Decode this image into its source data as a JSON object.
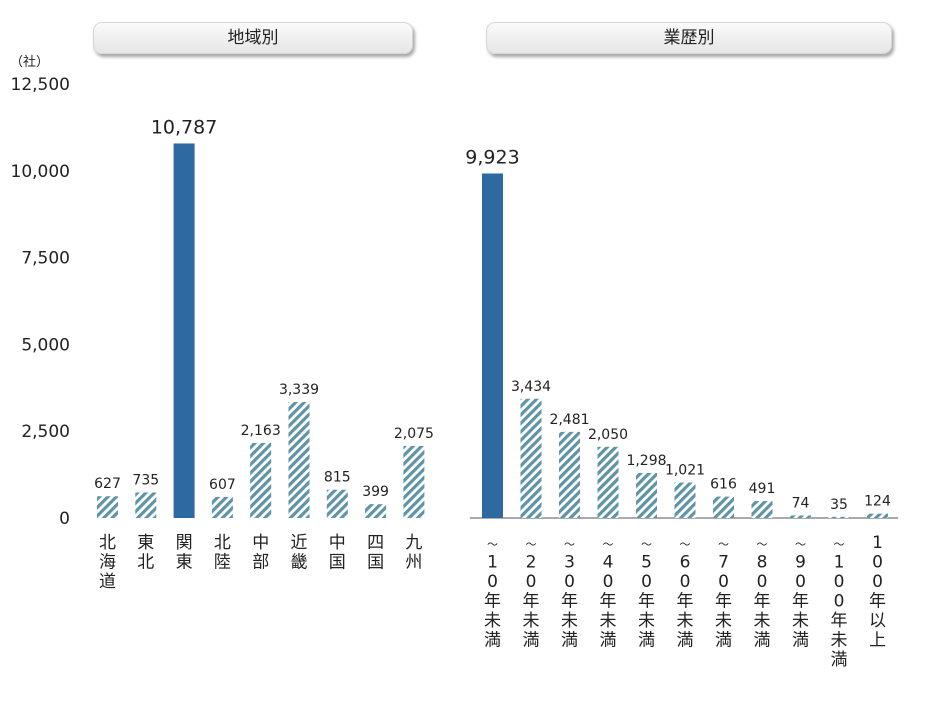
{
  "chart_data": {
    "type": "bar",
    "unit": "（社）",
    "ylim": [
      0,
      12500
    ],
    "yticks": [
      "0",
      "2,500",
      "5,000",
      "7,500",
      "10,000",
      "12,500"
    ],
    "colors": {
      "highlight": "#2e6aa1",
      "hatch": "#5f93a6"
    },
    "groups": [
      {
        "title": "地域別",
        "categories": [
          "北海道",
          "東北",
          "関東",
          "北陸",
          "中部",
          "近畿",
          "中国",
          "四国",
          "九州"
        ],
        "values": [
          627,
          735,
          10787,
          607,
          2163,
          3339,
          815,
          399,
          2075
        ],
        "labels": [
          "627",
          "735",
          "10,787",
          "607",
          "2,163",
          "3,339",
          "815",
          "399",
          "2,075"
        ],
        "highlight": [
          2
        ]
      },
      {
        "title": "業歴別",
        "categories": [
          "～10年未満",
          "～20年未満",
          "～30年未満",
          "～40年未満",
          "～50年未満",
          "～60年未満",
          "～70年未満",
          "～80年未満",
          "～90年未満",
          "～100年未満",
          "100年以上"
        ],
        "values": [
          9923,
          3434,
          2481,
          2050,
          1298,
          1021,
          616,
          491,
          74,
          35,
          124
        ],
        "labels": [
          "9,923",
          "3,434",
          "2,481",
          "2,050",
          "1,298",
          "1,021",
          "616",
          "491",
          "74",
          "35",
          "124"
        ],
        "highlight": [
          0
        ]
      }
    ]
  }
}
